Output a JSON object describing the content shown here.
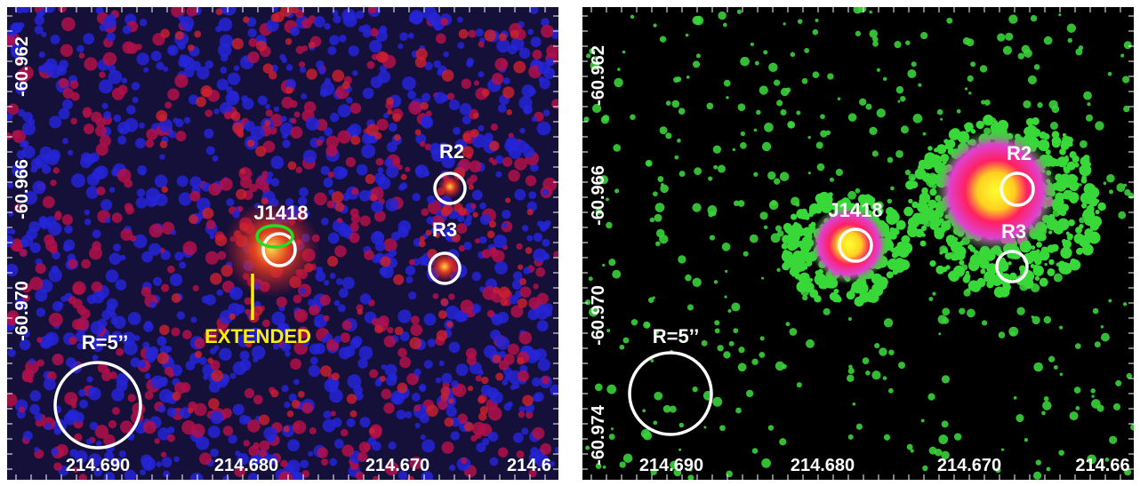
{
  "panels": [
    {
      "y_ticks": [
        "-60.962",
        "-60.966",
        "-60.970"
      ],
      "x_ticks": [
        "214.690",
        "214.680",
        "214.670",
        "214.6"
      ],
      "labels": {
        "r2": "R2",
        "r3": "R3",
        "source": "J1418",
        "extended": "EXTENDED",
        "radius": "R=5’’"
      }
    },
    {
      "y_ticks": [
        "-60.962",
        "-60.966",
        "-60.970",
        "-60.974"
      ],
      "x_ticks": [
        "214.690",
        "214.680",
        "214.670",
        "214.66"
      ],
      "labels": {
        "r2": "R2",
        "r3": "R3",
        "source": "J1418",
        "radius": "R=5’’"
      }
    }
  ]
}
